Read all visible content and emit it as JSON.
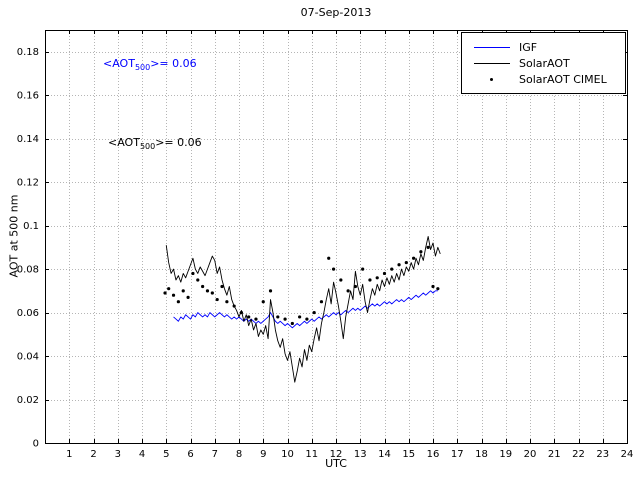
{
  "figure": {
    "background": "#ffffff",
    "axis_color": "#000000",
    "grid_color": "#b5b5b5"
  },
  "chart_data": {
    "type": "line",
    "title": "07-Sep-2013",
    "xlabel": "UTC",
    "ylabel": "AOT at 500 nm",
    "xlim": [
      0,
      24
    ],
    "ylim": [
      0,
      0.19
    ],
    "grid": true,
    "legend_position": "top-right",
    "xticks": [
      1,
      2,
      3,
      4,
      5,
      6,
      7,
      8,
      9,
      10,
      11,
      12,
      13,
      14,
      15,
      16,
      17,
      18,
      19,
      20,
      21,
      22,
      23,
      24
    ],
    "xtick_labels": [
      "1",
      "2",
      "3",
      "4",
      "5",
      "6",
      "7",
      "8",
      "9",
      "10",
      "11",
      "12",
      "13",
      "14",
      "15",
      "16",
      "17",
      "18",
      "19",
      "20",
      "21",
      "22",
      "23",
      "24"
    ],
    "yticks": [
      0,
      0.02,
      0.04,
      0.06,
      0.08,
      0.1,
      0.12,
      0.14,
      0.16,
      0.18
    ],
    "ytick_labels": [
      "0",
      "0.02",
      "0.04",
      "0.06",
      "0.08",
      "0.1",
      "0.12",
      "0.14",
      "0.16",
      "0.18"
    ],
    "annotations": [
      {
        "pre": "<AOT",
        "sub": "500",
        "post": ">= 0.06",
        "color": "#0000ff"
      },
      {
        "pre": "<AOT",
        "sub": "500",
        "post": ">= 0.06",
        "color": "#000000"
      }
    ],
    "series": [
      {
        "name": "IGF",
        "type": "line",
        "color": "#0000ff",
        "x_start": 5.3,
        "x_step": 0.1,
        "y": [
          0.058,
          0.057,
          0.056,
          0.058,
          0.057,
          0.059,
          0.058,
          0.057,
          0.059,
          0.058,
          0.06,
          0.059,
          0.058,
          0.059,
          0.058,
          0.06,
          0.059,
          0.058,
          0.059,
          0.06,
          0.059,
          0.058,
          0.059,
          0.058,
          0.057,
          0.058,
          0.057,
          0.058,
          0.057,
          0.056,
          0.057,
          0.056,
          0.057,
          0.056,
          0.055,
          0.056,
          0.055,
          0.056,
          0.057,
          0.058,
          0.06,
          0.058,
          0.056,
          0.055,
          0.056,
          0.055,
          0.054,
          0.055,
          0.054,
          0.053,
          0.054,
          0.055,
          0.054,
          0.055,
          0.056,
          0.055,
          0.056,
          0.057,
          0.056,
          0.057,
          0.058,
          0.057,
          0.058,
          0.059,
          0.058,
          0.059,
          0.06,
          0.059,
          0.06,
          0.059,
          0.06,
          0.061,
          0.06,
          0.061,
          0.062,
          0.061,
          0.062,
          0.061,
          0.062,
          0.063,
          0.062,
          0.063,
          0.064,
          0.063,
          0.064,
          0.063,
          0.064,
          0.065,
          0.064,
          0.065,
          0.064,
          0.065,
          0.066,
          0.065,
          0.066,
          0.065,
          0.066,
          0.067,
          0.066,
          0.067,
          0.068,
          0.067,
          0.068,
          0.069,
          0.068,
          0.069,
          0.07,
          0.069,
          0.07,
          0.07
        ]
      },
      {
        "name": "SolarAOT",
        "type": "line",
        "color": "#000000",
        "x_start": 5.0,
        "x_step": 0.1,
        "y": [
          0.091,
          0.083,
          0.078,
          0.08,
          0.075,
          0.077,
          0.074,
          0.078,
          0.076,
          0.079,
          0.082,
          0.085,
          0.08,
          0.078,
          0.081,
          0.079,
          0.077,
          0.08,
          0.083,
          0.086,
          0.084,
          0.078,
          0.081,
          0.075,
          0.071,
          0.068,
          0.072,
          0.066,
          0.063,
          0.061,
          0.058,
          0.061,
          0.056,
          0.059,
          0.054,
          0.057,
          0.052,
          0.055,
          0.049,
          0.052,
          0.05,
          0.054,
          0.048,
          0.066,
          0.06,
          0.052,
          0.047,
          0.044,
          0.048,
          0.041,
          0.038,
          0.042,
          0.035,
          0.028,
          0.033,
          0.039,
          0.035,
          0.043,
          0.038,
          0.045,
          0.042,
          0.048,
          0.053,
          0.047,
          0.055,
          0.06,
          0.066,
          0.071,
          0.064,
          0.074,
          0.069,
          0.063,
          0.056,
          0.048,
          0.058,
          0.064,
          0.07,
          0.066,
          0.079,
          0.072,
          0.068,
          0.073,
          0.065,
          0.06,
          0.066,
          0.071,
          0.068,
          0.073,
          0.07,
          0.075,
          0.072,
          0.076,
          0.073,
          0.077,
          0.074,
          0.078,
          0.075,
          0.08,
          0.077,
          0.081,
          0.079,
          0.083,
          0.08,
          0.085,
          0.082,
          0.087,
          0.084,
          0.09,
          0.095,
          0.089,
          0.092,
          0.086,
          0.09,
          0.087
        ]
      },
      {
        "name": "SolarAOT CIMEL",
        "type": "scatter",
        "color": "#000000",
        "x": [
          4.95,
          5.1,
          5.3,
          5.5,
          5.7,
          5.9,
          6.1,
          6.3,
          6.5,
          6.7,
          6.9,
          7.1,
          7.3,
          7.5,
          7.8,
          8.1,
          8.4,
          8.7,
          9.0,
          9.3,
          9.6,
          9.9,
          10.2,
          10.5,
          10.8,
          11.1,
          11.4,
          11.7,
          11.9,
          12.2,
          12.5,
          12.8,
          13.1,
          13.4,
          13.7,
          14.0,
          14.3,
          14.6,
          14.9,
          15.2,
          15.5,
          15.8,
          16.0,
          16.2
        ],
        "y": [
          0.069,
          0.071,
          0.068,
          0.065,
          0.07,
          0.067,
          0.078,
          0.075,
          0.072,
          0.07,
          0.069,
          0.066,
          0.072,
          0.065,
          0.063,
          0.06,
          0.058,
          0.057,
          0.065,
          0.07,
          0.058,
          0.057,
          0.055,
          0.058,
          0.057,
          0.06,
          0.065,
          0.085,
          0.08,
          0.075,
          0.07,
          0.072,
          0.08,
          0.075,
          0.076,
          0.078,
          0.08,
          0.082,
          0.083,
          0.085,
          0.088,
          0.09,
          0.072,
          0.071
        ]
      }
    ]
  }
}
